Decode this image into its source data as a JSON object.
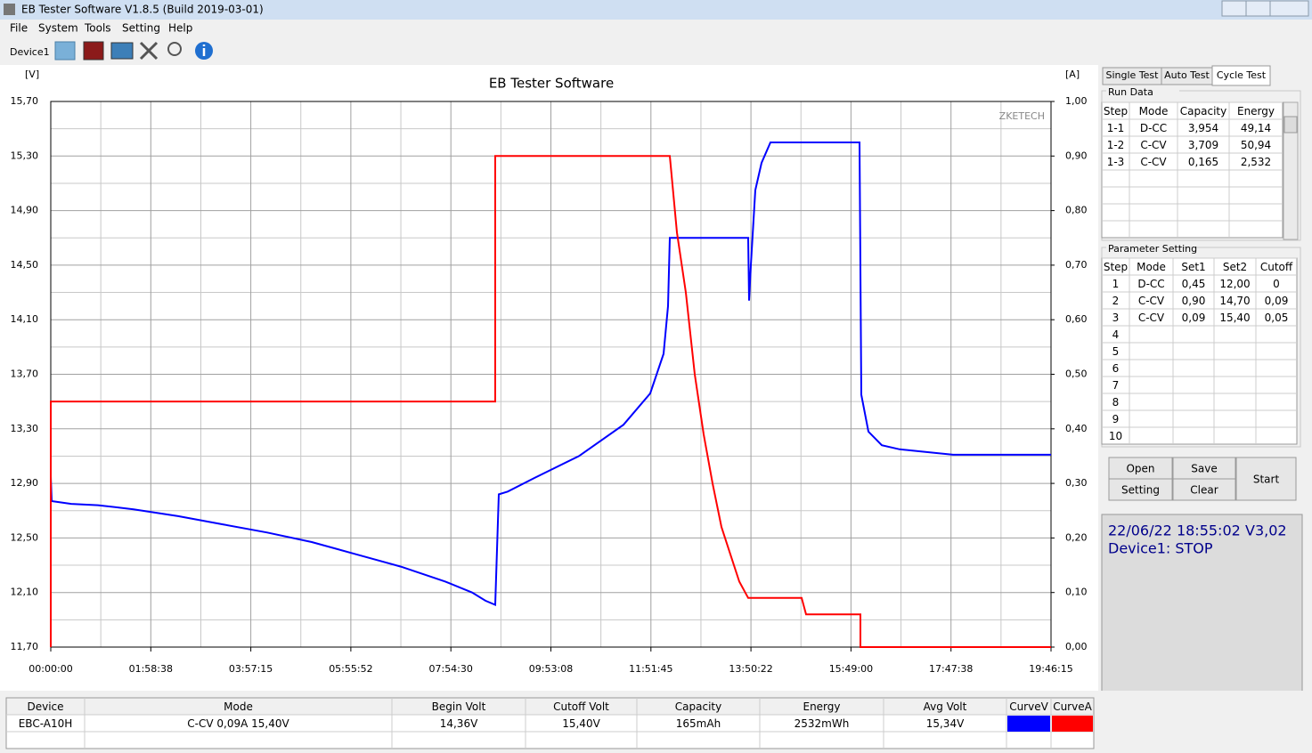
{
  "window": {
    "title": "EB Tester Software V1.8.5 (Build 2019-03-01)",
    "menu": [
      "File",
      "System",
      "Tools",
      "Setting",
      "Help"
    ],
    "device": "Device1"
  },
  "chart_data": {
    "type": "line",
    "title": "EB Tester Software",
    "y_label": "[V]",
    "y2_label": "[A]",
    "watermark": "ZKETECH",
    "grid": true,
    "xlim": [
      0,
      71175
    ],
    "xticks": [
      {
        "value": 0,
        "label": "00:00:00"
      },
      {
        "value": 7118,
        "label": "01:58:38"
      },
      {
        "value": 14235,
        "label": "03:57:15"
      },
      {
        "value": 21352,
        "label": "05:55:52"
      },
      {
        "value": 28470,
        "label": "07:54:30"
      },
      {
        "value": 35588,
        "label": "09:53:08"
      },
      {
        "value": 42705,
        "label": "11:51:45"
      },
      {
        "value": 49822,
        "label": "13:50:22"
      },
      {
        "value": 56940,
        "label": "15:49:00"
      },
      {
        "value": 64058,
        "label": "17:47:38"
      },
      {
        "value": 71175,
        "label": "19:46:15"
      }
    ],
    "ylim": [
      11.7,
      15.7
    ],
    "yticks": [
      {
        "value": 11.7,
        "label": "11,70"
      },
      {
        "value": 12.1,
        "label": "12,10"
      },
      {
        "value": 12.5,
        "label": "12,50"
      },
      {
        "value": 12.9,
        "label": "12,90"
      },
      {
        "value": 13.3,
        "label": "13,30"
      },
      {
        "value": 13.7,
        "label": "13,70"
      },
      {
        "value": 14.1,
        "label": "14,10"
      },
      {
        "value": 14.5,
        "label": "14,50"
      },
      {
        "value": 14.9,
        "label": "14,90"
      },
      {
        "value": 15.3,
        "label": "15,30"
      },
      {
        "value": 15.7,
        "label": "15,70"
      }
    ],
    "y2lim": [
      0,
      1
    ],
    "y2ticks": [
      {
        "value": 0,
        "label": "0,00"
      },
      {
        "value": 0.1,
        "label": "0,10"
      },
      {
        "value": 0.2,
        "label": "0,20"
      },
      {
        "value": 0.3,
        "label": "0,30"
      },
      {
        "value": 0.4,
        "label": "0,40"
      },
      {
        "value": 0.5,
        "label": "0,50"
      },
      {
        "value": 0.6,
        "label": "0,60"
      },
      {
        "value": 0.7,
        "label": "0,70"
      },
      {
        "value": 0.8,
        "label": "0,80"
      },
      {
        "value": 0.9,
        "label": "0,90"
      },
      {
        "value": 1,
        "label": "1,00"
      }
    ],
    "series": [
      {
        "name": "CurveV",
        "color": "#0000ff",
        "x": [
          0,
          63,
          1458,
          3359,
          5894,
          9063,
          12232,
          15401,
          18570,
          21739,
          24908,
          28077,
          29978,
          30929,
          31626,
          31880,
          32513,
          34415,
          37584,
          40753,
          42654,
          43605,
          43922,
          44049,
          49626,
          49690,
          49817,
          50134,
          50577,
          51211,
          57549,
          57675,
          58182,
          59133,
          60400,
          64203,
          71175
        ],
        "values": [
          12.95,
          12.77,
          12.75,
          12.74,
          12.71,
          12.66,
          12.6,
          12.54,
          12.47,
          12.38,
          12.29,
          12.18,
          12.1,
          12.04,
          12.01,
          12.82,
          12.84,
          12.94,
          13.1,
          13.33,
          13.56,
          13.85,
          14.2,
          14.7,
          14.7,
          14.24,
          14.5,
          15.05,
          15.25,
          15.4,
          15.4,
          13.55,
          13.28,
          13.18,
          13.15,
          13.11,
          13.11
        ]
      },
      {
        "name": "CurveA",
        "color": "#ff0000",
        "axis": "y2",
        "x": [
          0,
          0,
          31626,
          31626,
          44049,
          44556,
          45190,
          45824,
          46458,
          47091,
          47725,
          48359,
          48993,
          49626,
          53429,
          53746,
          57612,
          57612,
          71175
        ],
        "values": [
          0,
          0.45,
          0.45,
          0.9,
          0.9,
          0.76,
          0.65,
          0.5,
          0.39,
          0.3,
          0.22,
          0.17,
          0.12,
          0.09,
          0.09,
          0.06,
          0.06,
          0,
          0
        ]
      }
    ]
  },
  "tabs": [
    "Single Test",
    "Auto Test",
    "Cycle Test"
  ],
  "run_data": {
    "title": "Run Data",
    "columns": [
      "Step",
      "Mode",
      "Capacity",
      "Energy"
    ],
    "rows": [
      [
        "1-1",
        "D-CC",
        "3,954",
        "49,14"
      ],
      [
        "1-2",
        "C-CV",
        "3,709",
        "50,94"
      ],
      [
        "1-3",
        "C-CV",
        "0,165",
        "2,532"
      ]
    ]
  },
  "parameter_setting": {
    "title": "Parameter Setting",
    "columns": [
      "Step",
      "Mode",
      "Set1",
      "Set2",
      "Cutoff"
    ],
    "rows": [
      [
        "1",
        "D-CC",
        "0,45",
        "12,00",
        "0"
      ],
      [
        "2",
        "C-CV",
        "0,90",
        "14,70",
        "0,09"
      ],
      [
        "3",
        "C-CV",
        "0,09",
        "15,40",
        "0,05"
      ],
      [
        "4"
      ],
      [
        "5"
      ],
      [
        "6"
      ],
      [
        "7"
      ],
      [
        "8"
      ],
      [
        "9"
      ],
      [
        "10"
      ]
    ]
  },
  "buttons": {
    "open": "Open",
    "save": "Save",
    "setting": "Setting",
    "clear": "Clear",
    "start": "Start"
  },
  "status": {
    "datetime": "22/06/22 18:55:02",
    "version": "V3,02",
    "device": "Device1: STOP"
  },
  "summary": {
    "columns": [
      "Device",
      "Mode",
      "Begin Volt",
      "Cutoff Volt",
      "Capacity",
      "Energy",
      "Avg Volt"
    ],
    "row": [
      "EBC-A10H",
      "C-CV  0,09A  15,40V",
      "14,36V",
      "15,40V",
      "165mAh",
      "2532mWh",
      "15,34V"
    ]
  }
}
